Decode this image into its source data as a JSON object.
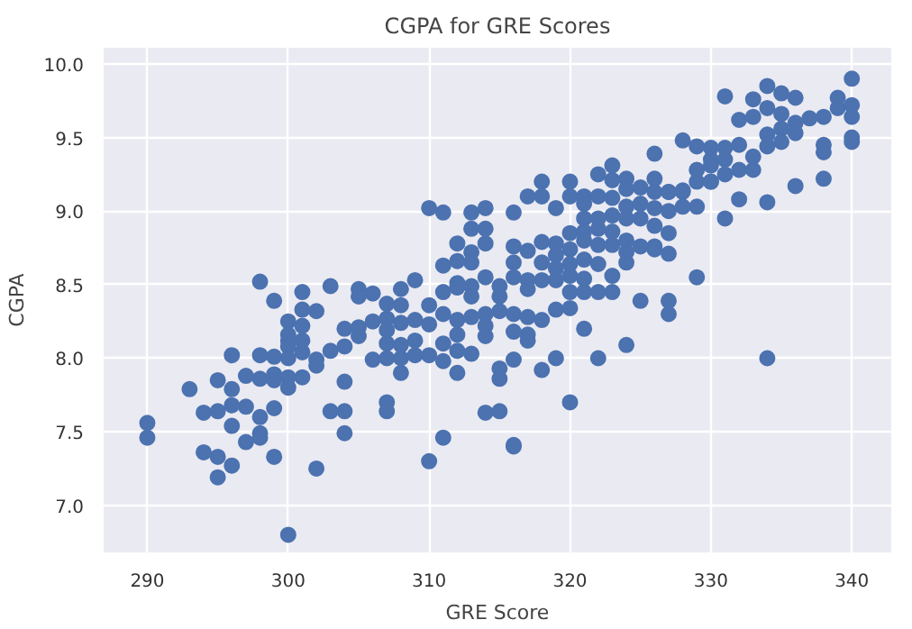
{
  "chart_data": {
    "type": "scatter",
    "title": "CGPA for GRE Scores",
    "xlabel": "GRE Score",
    "ylabel": "CGPA",
    "marker": "circle",
    "grid": true,
    "color": "#4c72b0",
    "xlim": [
      286.9,
      342.8
    ],
    "ylim": [
      6.68,
      10.11
    ],
    "xticks": [
      290,
      300,
      310,
      320,
      330,
      340
    ],
    "yticks": [
      {
        "value": 7.0,
        "label": "7.0"
      },
      {
        "value": 7.5,
        "label": "7.5"
      },
      {
        "value": 8.0,
        "label": "8.0"
      },
      {
        "value": 8.5,
        "label": "8.5"
      },
      {
        "value": 9.0,
        "label": "9.0"
      },
      {
        "value": 9.5,
        "label": "9.5"
      },
      {
        "value": 10.0,
        "label": "10.0"
      }
    ],
    "x": [
      290,
      290,
      293,
      294,
      294,
      295,
      295,
      295,
      295,
      296,
      296,
      296,
      296,
      296,
      297,
      297,
      297,
      298,
      298,
      298,
      298,
      298,
      298,
      299,
      299,
      299,
      299,
      299,
      299,
      300,
      300,
      300,
      300,
      300,
      300,
      300,
      300,
      301,
      301,
      301,
      301,
      301,
      301,
      302,
      302,
      302,
      302,
      303,
      303,
      303,
      304,
      304,
      304,
      304,
      304,
      305,
      305,
      305,
      305,
      306,
      306,
      306,
      307,
      307,
      307,
      307,
      307,
      307,
      307,
      308,
      308,
      308,
      308,
      308,
      308,
      309,
      309,
      309,
      309,
      310,
      310,
      310,
      310,
      310,
      311,
      311,
      311,
      311,
      311,
      311,
      311,
      312,
      312,
      312,
      312,
      312,
      312,
      312,
      312,
      313,
      313,
      313,
      313,
      313,
      313,
      313,
      313,
      314,
      314,
      314,
      314,
      314,
      314,
      314,
      314,
      315,
      315,
      315,
      315,
      315,
      315,
      316,
      316,
      316,
      316,
      316,
      316,
      316,
      316,
      316,
      317,
      317,
      317,
      317,
      317,
      317,
      317,
      318,
      318,
      318,
      318,
      318,
      318,
      318,
      319,
      319,
      319,
      319,
      319,
      319,
      319,
      320,
      320,
      320,
      320,
      320,
      320,
      320,
      320,
      320,
      321,
      321,
      321,
      321,
      321,
      321,
      321,
      321,
      321,
      322,
      322,
      322,
      322,
      322,
      322,
      322,
      322,
      323,
      323,
      323,
      323,
      323,
      323,
      323,
      323,
      324,
      324,
      324,
      324,
      324,
      324,
      324,
      324,
      325,
      325,
      325,
      325,
      325,
      326,
      326,
      326,
      326,
      326,
      326,
      326,
      327,
      327,
      327,
      327,
      327,
      327,
      327,
      328,
      328,
      328,
      328,
      329,
      329,
      329,
      329,
      329,
      330,
      330,
      330,
      330,
      330,
      331,
      331,
      331,
      331,
      331,
      332,
      332,
      332,
      332,
      333,
      333,
      333,
      333,
      334,
      334,
      334,
      334,
      334,
      334,
      335,
      335,
      335,
      335,
      336,
      336,
      336,
      336,
      337,
      338,
      338,
      338,
      338,
      339,
      339,
      340,
      340,
      340,
      340,
      340
    ],
    "values": [
      7.56,
      7.46,
      7.79,
      7.63,
      7.36,
      7.85,
      7.64,
      7.33,
      7.19,
      8.02,
      7.79,
      7.68,
      7.54,
      7.27,
      7.88,
      7.67,
      7.43,
      8.52,
      8.02,
      7.86,
      7.6,
      7.49,
      7.46,
      8.01,
      8.39,
      7.89,
      7.85,
      7.66,
      7.33,
      8.25,
      8.16,
      8.12,
      8.08,
      8.0,
      7.87,
      7.8,
      6.8,
      8.45,
      8.33,
      8.22,
      8.12,
      8.04,
      7.87,
      8.32,
      7.99,
      7.95,
      7.25,
      8.49,
      8.05,
      7.64,
      8.2,
      8.08,
      7.84,
      7.64,
      7.49,
      8.47,
      8.42,
      8.21,
      8.15,
      8.44,
      8.25,
      7.99,
      8.37,
      8.27,
      8.19,
      8.1,
      8.0,
      7.7,
      7.64,
      8.47,
      8.36,
      8.24,
      8.09,
      8.0,
      7.9,
      8.53,
      8.26,
      8.12,
      8.02,
      9.02,
      8.36,
      8.23,
      8.02,
      7.3,
      8.99,
      8.63,
      8.45,
      8.3,
      8.1,
      7.98,
      7.46,
      8.78,
      8.66,
      8.51,
      8.48,
      8.26,
      8.16,
      8.05,
      7.9,
      8.99,
      8.88,
      8.72,
      8.65,
      8.49,
      8.42,
      8.28,
      8.03,
      9.02,
      8.88,
      8.78,
      8.55,
      8.3,
      8.22,
      8.15,
      7.63,
      8.49,
      8.42,
      8.32,
      7.93,
      7.86,
      7.64,
      8.99,
      8.76,
      8.65,
      8.55,
      8.3,
      8.18,
      7.99,
      7.41,
      7.4,
      9.1,
      8.73,
      8.53,
      8.47,
      8.28,
      8.16,
      8.12,
      9.2,
      9.1,
      8.79,
      8.65,
      8.53,
      8.26,
      7.92,
      9.02,
      8.78,
      8.7,
      8.61,
      8.53,
      8.33,
      8.0,
      9.2,
      9.1,
      8.85,
      8.74,
      8.64,
      8.56,
      8.45,
      8.34,
      7.7,
      9.1,
      9.05,
      8.95,
      8.86,
      8.8,
      8.67,
      8.54,
      8.45,
      8.2,
      9.25,
      9.1,
      8.95,
      8.88,
      8.77,
      8.64,
      8.45,
      8.0,
      9.31,
      9.21,
      9.09,
      8.97,
      8.86,
      8.77,
      8.56,
      8.45,
      9.22,
      9.15,
      9.03,
      8.95,
      8.8,
      8.72,
      8.65,
      8.09,
      9.16,
      9.05,
      8.95,
      8.76,
      8.39,
      9.39,
      9.22,
      9.13,
      9.02,
      8.9,
      8.76,
      8.74,
      9.13,
      9.0,
      8.85,
      8.71,
      8.39,
      8.3,
      9.13,
      9.48,
      9.14,
      9.03,
      9.13,
      9.44,
      9.28,
      9.2,
      9.03,
      8.55,
      9.43,
      9.35,
      9.31,
      9.2,
      9.2,
      9.78,
      9.43,
      9.35,
      9.25,
      8.95,
      9.62,
      9.45,
      9.28,
      9.08,
      9.76,
      9.64,
      9.37,
      9.28,
      9.85,
      9.7,
      9.52,
      9.44,
      9.06,
      8.0,
      9.8,
      9.66,
      9.56,
      9.47,
      9.77,
      9.6,
      9.53,
      9.17,
      9.63,
      9.64,
      9.45,
      9.4,
      9.22,
      9.77,
      9.7,
      9.9,
      9.72,
      9.64,
      9.5,
      9.47
    ]
  }
}
